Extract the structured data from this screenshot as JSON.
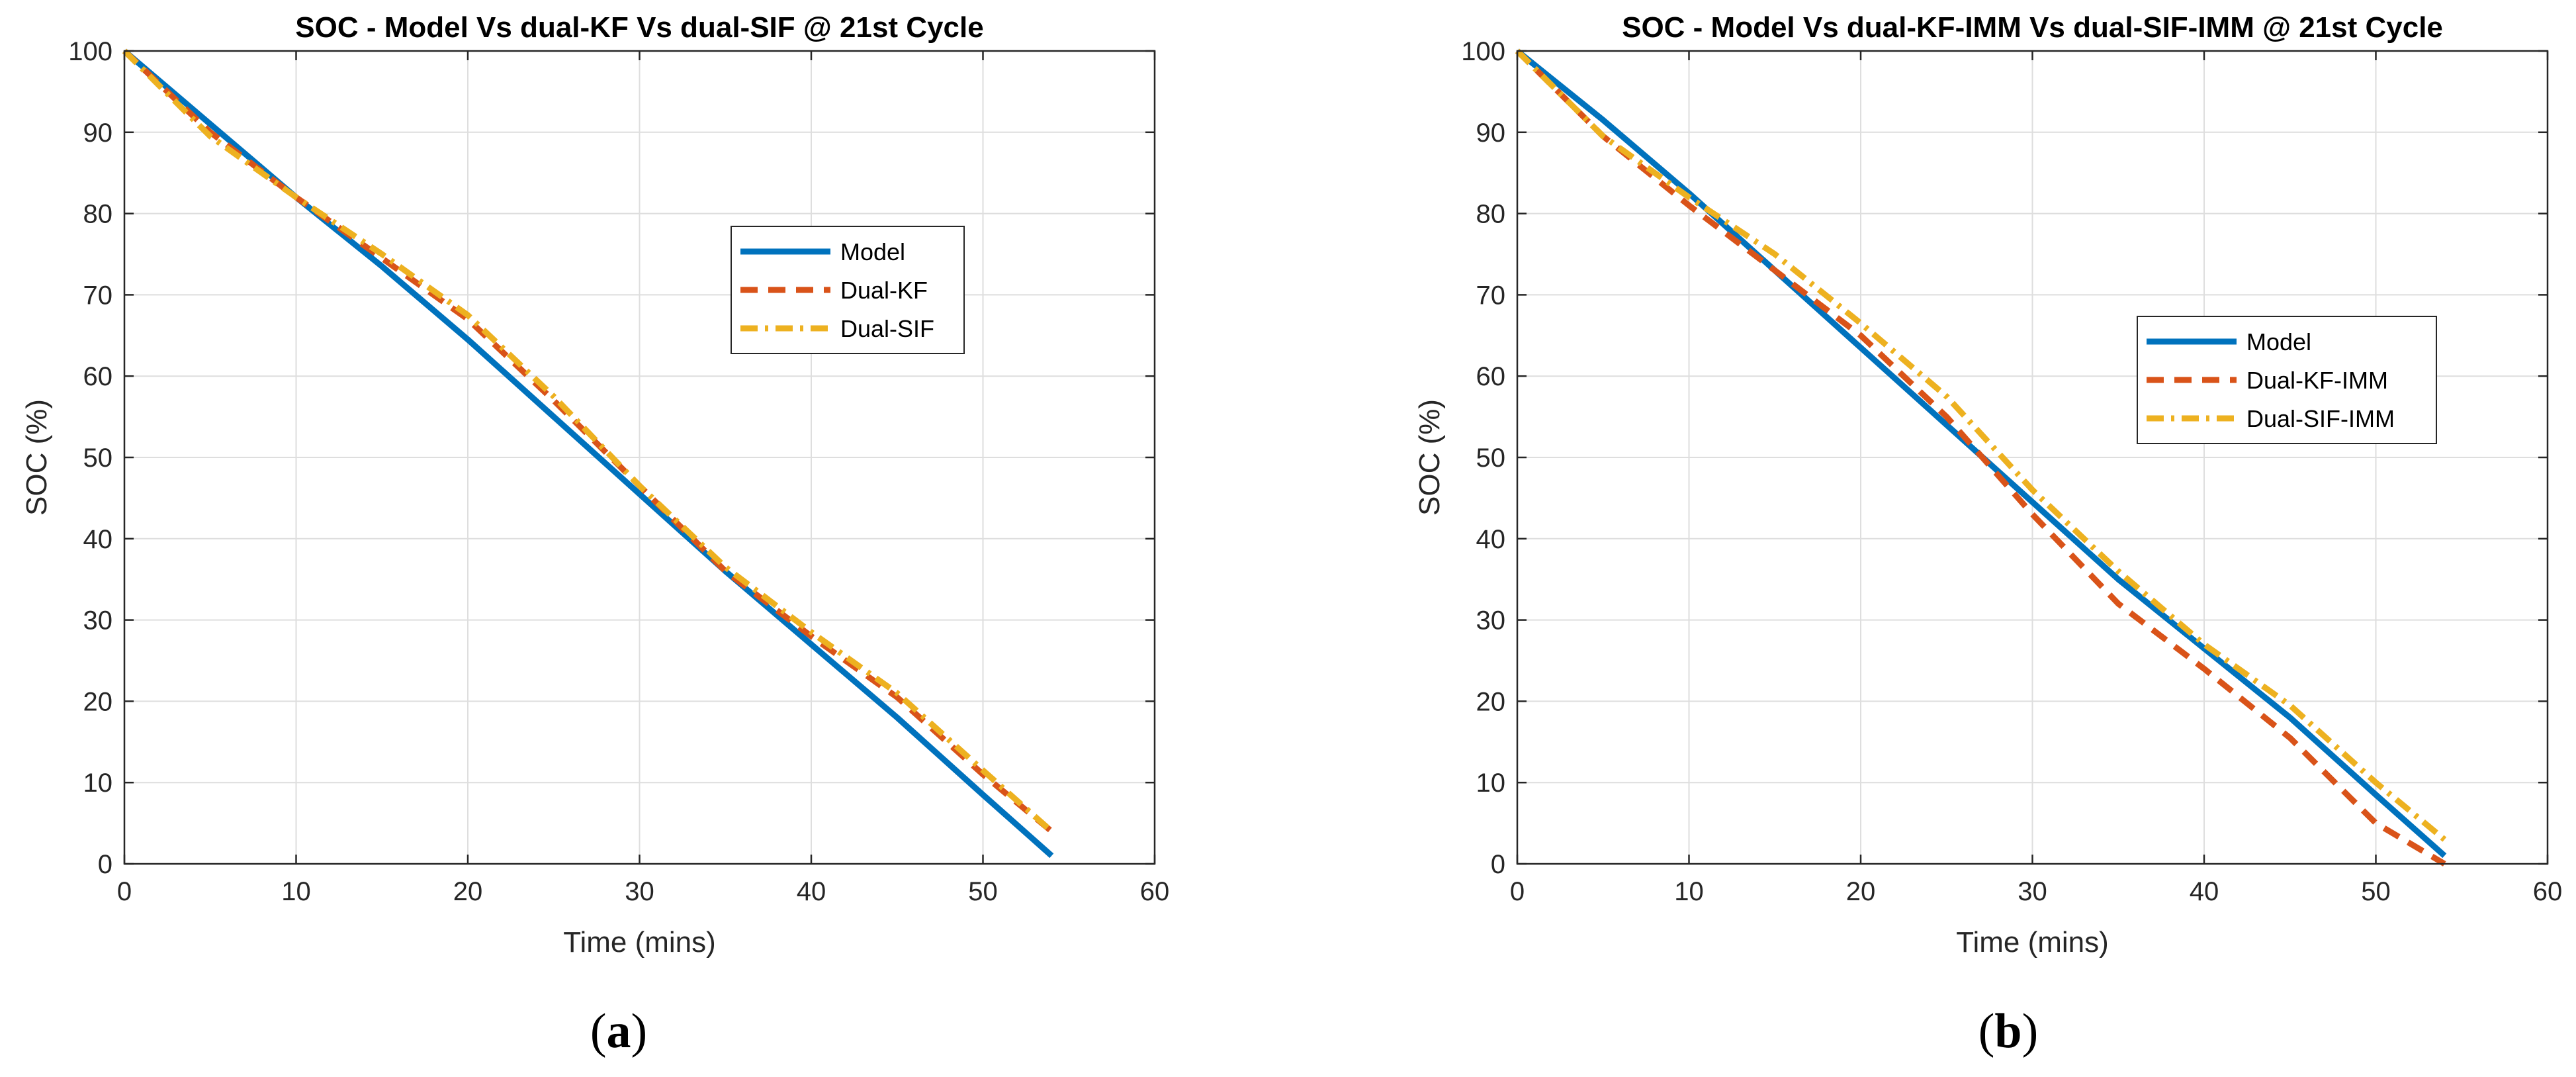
{
  "chart_data": [
    {
      "type": "line",
      "panel_label": "a",
      "title": "SOC - Model Vs dual-KF Vs dual-SIF @ 21st Cycle",
      "xlabel": "Time (mins)",
      "ylabel": "SOC (%)",
      "xlim": [
        0,
        60
      ],
      "ylim": [
        0,
        100
      ],
      "xticks": [
        0,
        10,
        20,
        30,
        40,
        50,
        60
      ],
      "yticks": [
        0,
        10,
        20,
        30,
        40,
        50,
        60,
        70,
        80,
        90,
        100
      ],
      "grid": true,
      "legend_position": "upper-middle-right",
      "series": [
        {
          "name": "Model",
          "style": "solid",
          "color": "#0072BD",
          "x": [
            0,
            5,
            10,
            15,
            20,
            25,
            30,
            35,
            40,
            45,
            50,
            54
          ],
          "y": [
            100,
            91,
            82,
            73.5,
            64.5,
            55,
            45.5,
            36,
            27,
            18,
            8.5,
            1
          ]
        },
        {
          "name": "Dual-KF",
          "style": "dashed",
          "color": "#D95319",
          "x": [
            0,
            5,
            10,
            15,
            20,
            25,
            30,
            35,
            40,
            45,
            50,
            54
          ],
          "y": [
            100,
            90,
            82,
            74.5,
            67,
            57,
            46.5,
            36,
            28,
            20.5,
            11,
            4
          ]
        },
        {
          "name": "Dual-SIF",
          "style": "dashdot",
          "color": "#EDB120",
          "x": [
            0,
            5,
            10,
            15,
            20,
            25,
            30,
            35,
            40,
            45,
            50,
            54
          ],
          "y": [
            100,
            89.5,
            82,
            75,
            67.5,
            57.5,
            46.5,
            36.5,
            28.5,
            21,
            11.5,
            4
          ]
        }
      ]
    },
    {
      "type": "line",
      "panel_label": "b",
      "title": "SOC - Model Vs dual-KF-IMM Vs dual-SIF-IMM @ 21st Cycle",
      "xlabel": "Time (mins)",
      "ylabel": "SOC (%)",
      "xlim": [
        0,
        60
      ],
      "ylim": [
        0,
        100
      ],
      "xticks": [
        0,
        10,
        20,
        30,
        40,
        50,
        60
      ],
      "yticks": [
        0,
        10,
        20,
        30,
        40,
        50,
        60,
        70,
        80,
        90,
        100
      ],
      "grid": true,
      "legend_position": "middle-right",
      "series": [
        {
          "name": "Model",
          "style": "solid",
          "color": "#0072BD",
          "x": [
            0,
            5,
            10,
            15,
            20,
            25,
            30,
            35,
            40,
            45,
            50,
            54
          ],
          "y": [
            100,
            91.5,
            82.5,
            73,
            63.5,
            54,
            44.5,
            35,
            26.5,
            18,
            8.5,
            1
          ]
        },
        {
          "name": "Dual-KF-IMM",
          "style": "dashed",
          "color": "#D95319",
          "x": [
            0,
            5,
            10,
            15,
            20,
            25,
            30,
            35,
            40,
            45,
            50,
            54
          ],
          "y": [
            100,
            89.5,
            81,
            73,
            65,
            55,
            43,
            32,
            24,
            15.5,
            5,
            0
          ]
        },
        {
          "name": "Dual-SIF-IMM",
          "style": "dashdot",
          "color": "#EDB120",
          "x": [
            0,
            5,
            10,
            15,
            20,
            25,
            30,
            35,
            40,
            45,
            50,
            54
          ],
          "y": [
            100,
            89.5,
            82,
            75,
            66.5,
            57.5,
            46,
            36,
            27,
            19.5,
            10,
            3
          ]
        }
      ]
    }
  ]
}
